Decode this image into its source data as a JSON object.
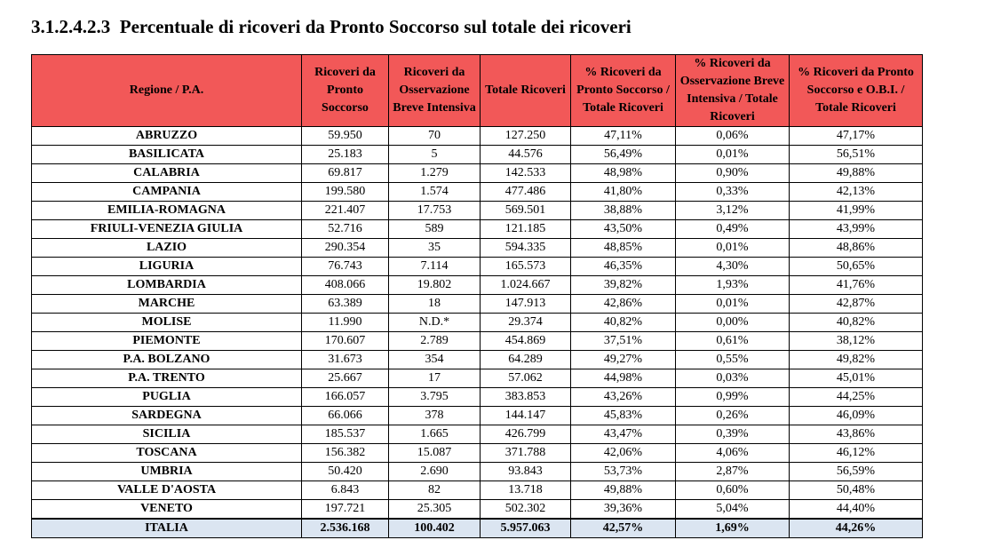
{
  "title": "3.1.2.4.2.3  Percentuale di ricoveri da Pronto Soccorso sul totale dei ricoveri",
  "table": {
    "headers": [
      "Regione / P.A.",
      "Ricoveri da Pronto Soccorso",
      "Ricoveri da Osservazione Breve Intensiva",
      "Totale Ricoveri",
      "% Ricoveri da Pronto Soccorso / Totale Ricoveri",
      "% Ricoveri da Osservazione Breve Intensiva / Totale Ricoveri",
      "% Ricoveri da Pronto Soccorso e O.B.I. / Totale Ricoveri"
    ],
    "rows": [
      [
        "ABRUZZO",
        "59.950",
        "70",
        "127.250",
        "47,11%",
        "0,06%",
        "47,17%"
      ],
      [
        "BASILICATA",
        "25.183",
        "5",
        "44.576",
        "56,49%",
        "0,01%",
        "56,51%"
      ],
      [
        "CALABRIA",
        "69.817",
        "1.279",
        "142.533",
        "48,98%",
        "0,90%",
        "49,88%"
      ],
      [
        "CAMPANIA",
        "199.580",
        "1.574",
        "477.486",
        "41,80%",
        "0,33%",
        "42,13%"
      ],
      [
        "EMILIA-ROMAGNA",
        "221.407",
        "17.753",
        "569.501",
        "38,88%",
        "3,12%",
        "41,99%"
      ],
      [
        "FRIULI-VENEZIA GIULIA",
        "52.716",
        "589",
        "121.185",
        "43,50%",
        "0,49%",
        "43,99%"
      ],
      [
        "LAZIO",
        "290.354",
        "35",
        "594.335",
        "48,85%",
        "0,01%",
        "48,86%"
      ],
      [
        "LIGURIA",
        "76.743",
        "7.114",
        "165.573",
        "46,35%",
        "4,30%",
        "50,65%"
      ],
      [
        "LOMBARDIA",
        "408.066",
        "19.802",
        "1.024.667",
        "39,82%",
        "1,93%",
        "41,76%"
      ],
      [
        "MARCHE",
        "63.389",
        "18",
        "147.913",
        "42,86%",
        "0,01%",
        "42,87%"
      ],
      [
        "MOLISE",
        "11.990",
        "N.D.*",
        "29.374",
        "40,82%",
        "0,00%",
        "40,82%"
      ],
      [
        "PIEMONTE",
        "170.607",
        "2.789",
        "454.869",
        "37,51%",
        "0,61%",
        "38,12%"
      ],
      [
        "P.A. BOLZANO",
        "31.673",
        "354",
        "64.289",
        "49,27%",
        "0,55%",
        "49,82%"
      ],
      [
        "P.A. TRENTO",
        "25.667",
        "17",
        "57.062",
        "44,98%",
        "0,03%",
        "45,01%"
      ],
      [
        "PUGLIA",
        "166.057",
        "3.795",
        "383.853",
        "43,26%",
        "0,99%",
        "44,25%"
      ],
      [
        "SARDEGNA",
        "66.066",
        "378",
        "144.147",
        "45,83%",
        "0,26%",
        "46,09%"
      ],
      [
        "SICILIA",
        "185.537",
        "1.665",
        "426.799",
        "43,47%",
        "0,39%",
        "43,86%"
      ],
      [
        "TOSCANA",
        "156.382",
        "15.087",
        "371.788",
        "42,06%",
        "4,06%",
        "46,12%"
      ],
      [
        "UMBRIA",
        "50.420",
        "2.690",
        "93.843",
        "53,73%",
        "2,87%",
        "56,59%"
      ],
      [
        "VALLE D'AOSTA",
        "6.843",
        "82",
        "13.718",
        "49,88%",
        "0,60%",
        "50,48%"
      ],
      [
        "VENETO",
        "197.721",
        "25.305",
        "502.302",
        "39,36%",
        "5,04%",
        "44,40%"
      ]
    ],
    "total": [
      "ITALIA",
      "2.536.168",
      "100.402",
      "5.957.063",
      "42,57%",
      "1,69%",
      "44,26%"
    ]
  }
}
